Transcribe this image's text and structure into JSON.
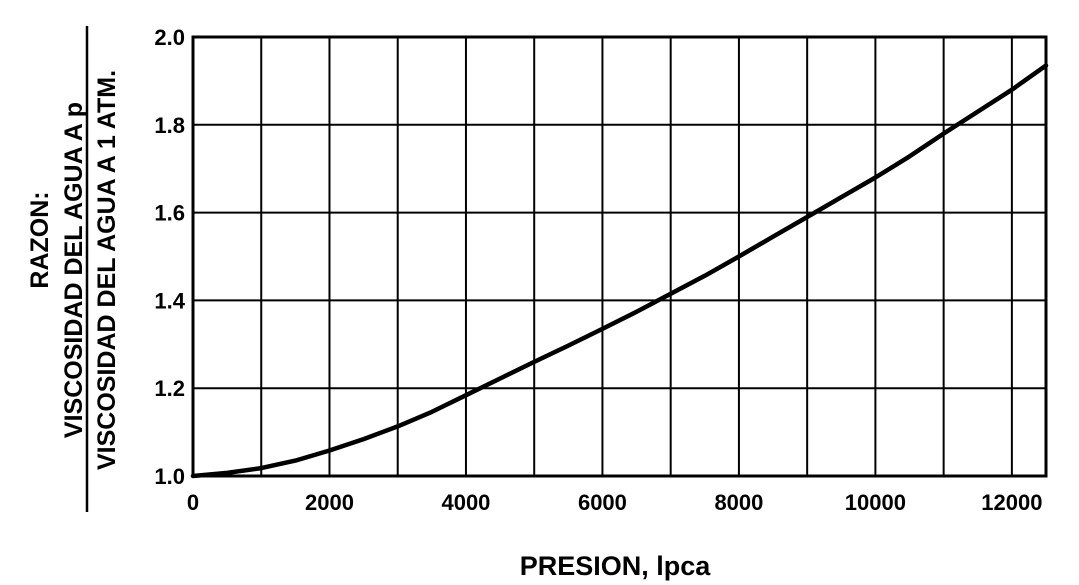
{
  "chart_data": {
    "type": "line",
    "title": "",
    "xlabel": "PRESION, lpca",
    "ylabel": {
      "prefix": "RAZON:",
      "numerator": "VISCOSIDAD DEL AGUA A p",
      "denominator": "VISCOSIDAD DEL AGUA A 1 ATM."
    },
    "xlim": [
      0,
      12500
    ],
    "ylim": [
      1.0,
      2.0
    ],
    "x_grid_step": 1000,
    "y_grid_step": 0.2,
    "x_ticks": [
      {
        "value": 0,
        "label": "0"
      },
      {
        "value": 2000,
        "label": "2000"
      },
      {
        "value": 4000,
        "label": "4000"
      },
      {
        "value": 6000,
        "label": "6000"
      },
      {
        "value": 8000,
        "label": "8000"
      },
      {
        "value": 10000,
        "label": "10000"
      },
      {
        "value": 12000,
        "label": "12000"
      }
    ],
    "y_ticks": [
      {
        "value": 1.0,
        "label": "1.0"
      },
      {
        "value": 1.2,
        "label": "1.2"
      },
      {
        "value": 1.4,
        "label": "1.4"
      },
      {
        "value": 1.6,
        "label": "1.6"
      },
      {
        "value": 1.8,
        "label": "1.8"
      },
      {
        "value": 2.0,
        "label": "2.0"
      }
    ],
    "grid": true,
    "series": [
      {
        "color": "#000000",
        "x": [
          0,
          500,
          1000,
          1500,
          2000,
          2500,
          3000,
          3500,
          4000,
          4500,
          5000,
          5500,
          6000,
          6500,
          7000,
          7500,
          8000,
          8500,
          9000,
          9500,
          10000,
          10500,
          11000,
          11500,
          12000,
          12500
        ],
        "y": [
          1.0,
          1.007,
          1.018,
          1.035,
          1.058,
          1.084,
          1.113,
          1.146,
          1.184,
          1.222,
          1.26,
          1.297,
          1.335,
          1.374,
          1.415,
          1.456,
          1.5,
          1.545,
          1.59,
          1.635,
          1.68,
          1.728,
          1.78,
          1.83,
          1.88,
          1.935
        ]
      }
    ]
  }
}
